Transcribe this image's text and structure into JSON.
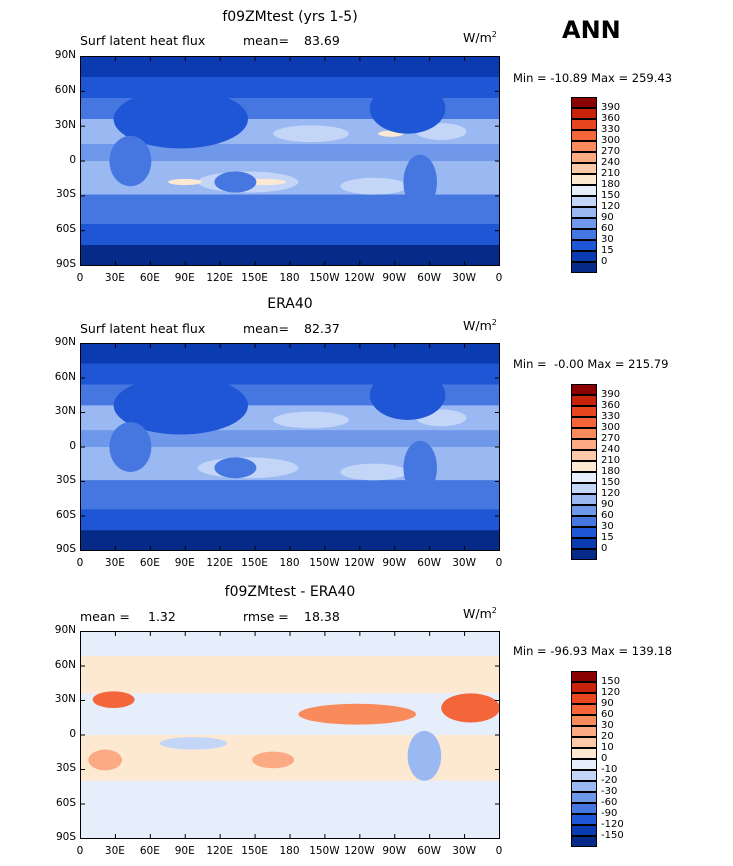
{
  "season": "ANN",
  "panels": [
    {
      "title": "f09ZMtest (yrs 1-5)",
      "left_label": "Surf latent heat flux",
      "stat_label": "mean=",
      "stat_value": "83.69",
      "units": "W/m",
      "units_sup": "2",
      "minmax": "Min = -10.89 Max = 259.43",
      "colorbar_labels": [
        "390",
        "360",
        "330",
        "300",
        "270",
        "240",
        "210",
        "180",
        "150",
        "120",
        "90",
        "60",
        "30",
        "15",
        "0"
      ],
      "colorbar_colors": [
        "#8b0000",
        "#c8230a",
        "#e8461c",
        "#f4663a",
        "#f88a5c",
        "#fbaa84",
        "#fccaa8",
        "#fde8d2",
        "#e6eefc",
        "#c4d6f8",
        "#9ab8f2",
        "#6f97ea",
        "#4677e0",
        "#1f56d6",
        "#0a3bb0",
        "#052a88"
      ]
    },
    {
      "title": "ERA40",
      "left_label": "Surf latent heat flux",
      "stat_label": "mean=",
      "stat_value": "82.37",
      "units": "W/m",
      "units_sup": "2",
      "minmax": "Min =  -0.00 Max = 215.79",
      "colorbar_labels": [
        "390",
        "360",
        "330",
        "300",
        "270",
        "240",
        "210",
        "180",
        "150",
        "120",
        "90",
        "60",
        "30",
        "15",
        "0"
      ],
      "colorbar_colors": [
        "#8b0000",
        "#c8230a",
        "#e8461c",
        "#f4663a",
        "#f88a5c",
        "#fbaa84",
        "#fccaa8",
        "#fde8d2",
        "#e6eefc",
        "#c4d6f8",
        "#9ab8f2",
        "#6f97ea",
        "#4677e0",
        "#1f56d6",
        "#0a3bb0",
        "#052a88"
      ]
    },
    {
      "title": "f09ZMtest - ERA40",
      "left_label": "mean =",
      "left_value": "1.32",
      "stat_label": "rmse =",
      "stat_value": "18.38",
      "units": "W/m",
      "units_sup": "2",
      "minmax": "Min = -96.93 Max = 139.18",
      "colorbar_labels": [
        "150",
        "120",
        "90",
        "60",
        "30",
        "20",
        "10",
        "0",
        "-10",
        "-20",
        "-30",
        "-60",
        "-90",
        "-120",
        "-150"
      ],
      "colorbar_colors": [
        "#8b0000",
        "#c8230a",
        "#e8461c",
        "#f4663a",
        "#f88a5c",
        "#fbaa84",
        "#fccaa8",
        "#fde8d2",
        "#e6eefc",
        "#c4d6f8",
        "#9ab8f2",
        "#6f97ea",
        "#4677e0",
        "#1f56d6",
        "#0a3bb0",
        "#052a88"
      ]
    }
  ],
  "lat_ticks": [
    "90N",
    "60N",
    "30N",
    "0",
    "30S",
    "60S",
    "90S"
  ],
  "lon_ticks": [
    "0",
    "30E",
    "60E",
    "90E",
    "120E",
    "150E",
    "180",
    "150W",
    "120W",
    "90W",
    "60W",
    "30W",
    "0"
  ],
  "chart_data": [
    {
      "type": "heatmap",
      "title": "f09ZMtest (yrs 1-5)",
      "subtitle": "Surf latent heat flux",
      "mean": 83.69,
      "min": -10.89,
      "max": 259.43,
      "units": "W/m2",
      "contour_levels": [
        0,
        15,
        30,
        60,
        90,
        120,
        150,
        180,
        210,
        240,
        270,
        300,
        330,
        360,
        390
      ],
      "x_ticks": [
        "0",
        "30E",
        "60E",
        "90E",
        "120E",
        "150E",
        "180",
        "150W",
        "120W",
        "90W",
        "60W",
        "30W",
        "0"
      ],
      "y_ticks": [
        "90N",
        "60N",
        "30N",
        "0",
        "30S",
        "60S",
        "90S"
      ],
      "xlim": [
        0,
        360
      ],
      "ylim": [
        -90,
        90
      ]
    },
    {
      "type": "heatmap",
      "title": "ERA40",
      "subtitle": "Surf latent heat flux",
      "mean": 82.37,
      "min": -0.0,
      "max": 215.79,
      "units": "W/m2",
      "contour_levels": [
        0,
        15,
        30,
        60,
        90,
        120,
        150,
        180,
        210,
        240,
        270,
        300,
        330,
        360,
        390
      ],
      "x_ticks": [
        "0",
        "30E",
        "60E",
        "90E",
        "120E",
        "150E",
        "180",
        "150W",
        "120W",
        "90W",
        "60W",
        "30W",
        "0"
      ],
      "y_ticks": [
        "90N",
        "60N",
        "30N",
        "0",
        "30S",
        "60S",
        "90S"
      ],
      "xlim": [
        0,
        360
      ],
      "ylim": [
        -90,
        90
      ]
    },
    {
      "type": "heatmap",
      "title": "f09ZMtest - ERA40",
      "mean": 1.32,
      "rmse": 18.38,
      "min": -96.93,
      "max": 139.18,
      "units": "W/m2",
      "contour_levels": [
        -150,
        -120,
        -90,
        -60,
        -30,
        -20,
        -10,
        0,
        10,
        20,
        30,
        60,
        90,
        120,
        150
      ],
      "x_ticks": [
        "0",
        "30E",
        "60E",
        "90E",
        "120E",
        "150E",
        "180",
        "150W",
        "120W",
        "90W",
        "60W",
        "30W",
        "0"
      ],
      "y_ticks": [
        "90N",
        "60N",
        "30N",
        "0",
        "30S",
        "60S",
        "90S"
      ],
      "xlim": [
        0,
        360
      ],
      "ylim": [
        -90,
        90
      ]
    }
  ]
}
